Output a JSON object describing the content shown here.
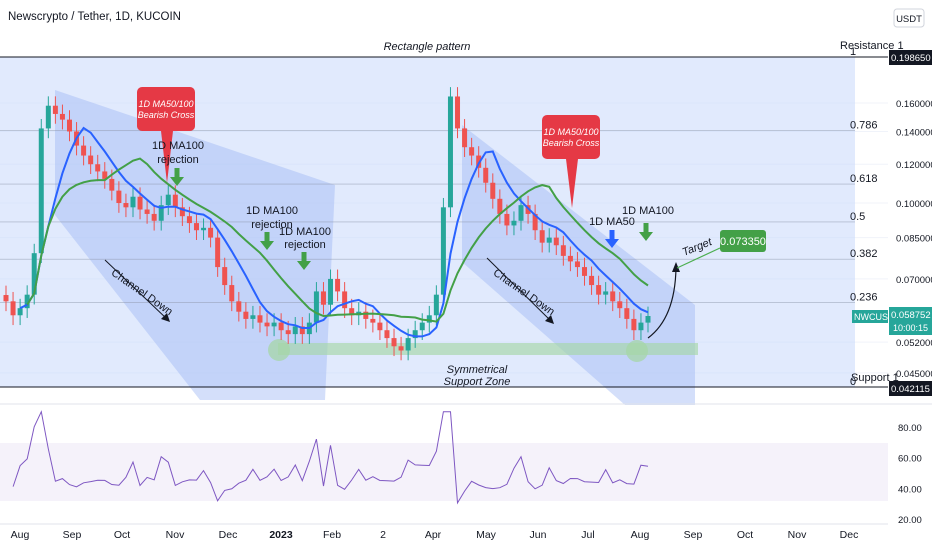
{
  "header": {
    "title": "Newscrypto / Tether, 1D, KUCOIN",
    "currency_button": "USDT"
  },
  "chart_data": {
    "type": "candlestick",
    "symbol": "NWCUSDT",
    "last_price": "0.058752",
    "countdown": "10:00:15",
    "x_ticks": [
      "Aug",
      "Sep",
      "Oct",
      "Nov",
      "Dec",
      "2023",
      "Feb",
      "2",
      "Apr",
      "May",
      "Jun",
      "Jul",
      "Aug",
      "Sep",
      "Oct",
      "Nov",
      "Dec"
    ],
    "y_ticks": [
      "0.160000",
      "0.140000",
      "0.120000",
      "0.100000",
      "0.085000",
      "0.070000",
      "0.052000",
      "0.045000"
    ],
    "resistance": {
      "label": "Resistance 1",
      "value": "0.198650"
    },
    "support": {
      "label": "Support 1",
      "value": "0.042115"
    },
    "target": {
      "label": "Target",
      "value": "0.073350"
    },
    "fib_levels": [
      {
        "label": "1",
        "value": 0.19865
      },
      {
        "label": "0.786",
        "value": 0.1405
      },
      {
        "label": "0.618",
        "value": 0.1093
      },
      {
        "label": "0.5",
        "value": 0.0915
      },
      {
        "label": "0.382",
        "value": 0.0768
      },
      {
        "label": "0.236",
        "value": 0.0627
      },
      {
        "label": "0",
        "value": 0.042115
      }
    ],
    "annotations": {
      "rectangle": "Rectangle pattern",
      "channel_left": "Channel Down",
      "channel_right": "Channel Down",
      "support_zone_1": "Symmetrical",
      "support_zone_2": "Support Zone",
      "cross_left_1": "1D MA50/100",
      "cross_left_2": "Bearish Cross",
      "cross_right_1": "1D MA50/100",
      "cross_right_2": "Bearish Cross",
      "rej1_line1": "1D MA100",
      "rej1_line2": "rejection",
      "rej2_line1": "1D MA100",
      "rej2_line2": "rejection",
      "rej3_line1": "1D MA100",
      "rej3_line2": "rejection",
      "ma50_label": "1D MA50",
      "ma100_label": "1D MA100"
    },
    "rsi_ticks": [
      "80.00",
      "60.00",
      "40.00",
      "20.00"
    ],
    "colors": {
      "up": "#26a69a",
      "down": "#ef5350",
      "ma50": "#2962ff",
      "ma100": "#43a047",
      "rsi": "#7e57c2",
      "zone_fill": "#c8d8fb",
      "support_zone": "#a5d6a7",
      "callout_red": "#e53945",
      "target_green": "#43a047"
    },
    "series_closes": [
      0.063,
      0.059,
      0.061,
      0.065,
      0.079,
      0.142,
      0.158,
      0.152,
      0.148,
      0.14,
      0.131,
      0.125,
      0.12,
      0.116,
      0.112,
      0.106,
      0.1,
      0.098,
      0.103,
      0.097,
      0.095,
      0.092,
      0.099,
      0.104,
      0.098,
      0.094,
      0.091,
      0.088,
      0.089,
      0.085,
      0.074,
      0.068,
      0.063,
      0.06,
      0.058,
      0.059,
      0.057,
      0.056,
      0.057,
      0.055,
      0.054,
      0.056,
      0.054,
      0.057,
      0.066,
      0.062,
      0.07,
      0.066,
      0.061,
      0.059,
      0.06,
      0.058,
      0.057,
      0.055,
      0.053,
      0.051,
      0.05,
      0.053,
      0.055,
      0.057,
      0.059,
      0.065,
      0.098,
      0.165,
      0.142,
      0.13,
      0.125,
      0.118,
      0.11,
      0.102,
      0.095,
      0.09,
      0.092,
      0.099,
      0.095,
      0.088,
      0.083,
      0.085,
      0.082,
      0.078,
      0.076,
      0.074,
      0.071,
      0.068,
      0.065,
      0.066,
      0.063,
      0.061,
      0.058,
      0.055,
      0.057,
      0.0588
    ]
  }
}
